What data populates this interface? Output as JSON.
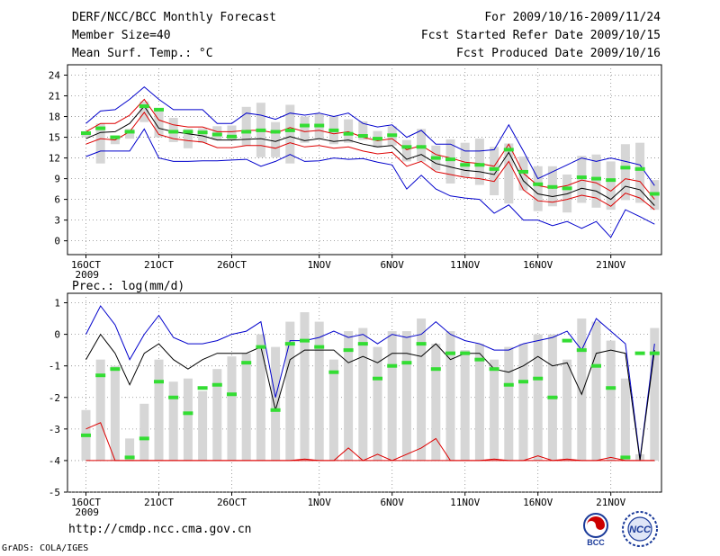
{
  "header": {
    "line1": "DERF/NCC/BCC Monthly Forecast",
    "line2": "Member Size=40",
    "line3": "Mean Surf. Temp.: °C",
    "right1": "For 2009/10/16-2009/11/24",
    "right2": "Fcst Started Refer Date 2009/10/15",
    "right3": "Fcst Produced Date 2009/10/16"
  },
  "footer": {
    "url": "http://cmdp.ncc.cma.gov.cn",
    "grads": "GrADS: COLA/IGES",
    "logo1_text": "BCC",
    "logo2_text": "NCC"
  },
  "colors": {
    "blue": "#0000cc",
    "red": "#dd0000",
    "black": "#000000",
    "green": "#33dd33",
    "bar": "#d6d6d6"
  },
  "chart_data": [
    {
      "type": "line",
      "title": "Mean Surf. Temp.: °C",
      "xlabel": "",
      "ylabel": "",
      "ylim": [
        -2,
        25.5
      ],
      "yticks": [
        0,
        3,
        6,
        9,
        12,
        15,
        18,
        21,
        24
      ],
      "x_tick_labels": [
        {
          "day": 1,
          "label": "16OCT",
          "sub": "2009"
        },
        {
          "day": 6,
          "label": "21OCT"
        },
        {
          "day": 11,
          "label": "26OCT"
        },
        {
          "day": 17,
          "label": "1NOV"
        },
        {
          "day": 22,
          "label": "6NOV"
        },
        {
          "day": 27,
          "label": "11NOV"
        },
        {
          "day": 32,
          "label": "16NOV"
        },
        {
          "day": 37,
          "label": "21NOV"
        }
      ],
      "days": [
        1,
        2,
        3,
        4,
        5,
        6,
        7,
        8,
        9,
        10,
        11,
        12,
        13,
        14,
        15,
        16,
        17,
        18,
        19,
        20,
        21,
        22,
        23,
        24,
        25,
        26,
        27,
        28,
        29,
        30,
        31,
        32,
        33,
        34,
        35,
        36,
        37,
        38,
        39,
        40
      ],
      "series": [
        {
          "name": "ensemble max",
          "color": "blue",
          "values": [
            17,
            18.8,
            19,
            20.5,
            22.3,
            20.5,
            19,
            19,
            19,
            17,
            17,
            18.5,
            18.2,
            17.6,
            18.5,
            18.2,
            18.5,
            18,
            18.5,
            17,
            16.5,
            16.8,
            15,
            16,
            14,
            14,
            13,
            13,
            13.2,
            16.8,
            13,
            9,
            10,
            11,
            12,
            11.5,
            12,
            11.5,
            11,
            8
          ]
        },
        {
          "name": "upper spread",
          "color": "red",
          "values": [
            15.8,
            17,
            17,
            18.2,
            20.5,
            17.5,
            16.8,
            16.5,
            16.5,
            15.8,
            15.8,
            16,
            16,
            15.6,
            16.4,
            15.8,
            16,
            15.5,
            15.8,
            15,
            14.5,
            14.8,
            13.2,
            13.8,
            12.5,
            12,
            11.4,
            11.2,
            10.8,
            14,
            9.8,
            8,
            7.6,
            8,
            8.8,
            8.4,
            7.2,
            9,
            8.6,
            6
          ]
        },
        {
          "name": "ensemble mean",
          "color": "black",
          "values": [
            14.8,
            15.7,
            15.8,
            17,
            19.5,
            16.3,
            15.8,
            15.5,
            15.2,
            14.6,
            14.6,
            14.7,
            14.8,
            14.4,
            15.1,
            14.5,
            14.8,
            14.4,
            14.6,
            14,
            13.6,
            13.8,
            11.8,
            12.5,
            11.2,
            10.7,
            10.2,
            10,
            9.6,
            12.8,
            8.7,
            6.8,
            6.4,
            6.8,
            7.6,
            7.2,
            6,
            7.9,
            7.4,
            5.1
          ]
        },
        {
          "name": "lower spread",
          "color": "red",
          "values": [
            14,
            14.8,
            14.6,
            15.8,
            18.6,
            15.4,
            14.8,
            14.5,
            14.3,
            13.5,
            13.5,
            13.8,
            13.8,
            13.4,
            14.2,
            13.6,
            13.8,
            13.4,
            13.6,
            13,
            12.6,
            12.8,
            10.8,
            11.5,
            10,
            9.6,
            9.2,
            9,
            8.6,
            11.5,
            7.4,
            5.8,
            5.6,
            6,
            6.6,
            6.2,
            5,
            6.9,
            6.2,
            4.5
          ]
        },
        {
          "name": "ensemble min",
          "color": "blue",
          "values": [
            12.2,
            13,
            13,
            13,
            16.2,
            12,
            11.5,
            11.5,
            11.6,
            11.6,
            11.7,
            11.8,
            10.8,
            11.5,
            12.5,
            11.5,
            11.6,
            12,
            11.8,
            11.9,
            11.4,
            11,
            7.5,
            9.5,
            7.5,
            6.5,
            6.2,
            6,
            4,
            5.2,
            3,
            3,
            2.2,
            2.8,
            1.8,
            2.8,
            0.5,
            4.5,
            3.5,
            2.4
          ]
        }
      ],
      "bars": {
        "name": "member spread box",
        "low": [
          15,
          11.2,
          14,
          14.8,
          17.2,
          15,
          14.3,
          13.4,
          14.2,
          14.6,
          14.6,
          13.8,
          12.1,
          12.1,
          11.2,
          14.2,
          14.8,
          14,
          14.2,
          14.6,
          13.5,
          13.8,
          11.5,
          11.5,
          10.2,
          8.3,
          9.2,
          8.1,
          6.6,
          5.4,
          7.3,
          4.3,
          5,
          4.1,
          5.5,
          4.8,
          4.5,
          5.9,
          5.5,
          4.5
        ],
        "high": [
          15.8,
          17,
          15.2,
          16.2,
          20.2,
          19,
          17.8,
          16.2,
          16.3,
          16.6,
          16.7,
          19.4,
          20,
          17.2,
          19.7,
          18,
          18.4,
          18.1,
          17.6,
          17.3,
          15.9,
          16.6,
          14.6,
          16.2,
          13.8,
          14.7,
          14.2,
          14.8,
          13.6,
          14.1,
          12.2,
          10.8,
          10.8,
          9.6,
          12.3,
          12.5,
          11.5,
          14,
          14.2,
          8.8
        ]
      },
      "markers": {
        "name": "observed",
        "color": "green",
        "values": [
          15.6,
          16.3,
          15,
          15.8,
          19.5,
          19,
          15.8,
          15.8,
          15.7,
          15.4,
          15.1,
          15.8,
          16,
          15.8,
          16,
          16.7,
          16.7,
          16,
          15.5,
          15.2,
          14.8,
          15.3,
          13.6,
          13.6,
          12,
          11.8,
          11,
          11,
          10.4,
          13.2,
          10,
          8.2,
          7.8,
          7.6,
          9.2,
          9,
          8.8,
          10.6,
          10.4,
          6.8
        ]
      }
    },
    {
      "type": "line",
      "title": "Prec.: log(mm/d)",
      "xlabel": "",
      "ylabel": "",
      "ylim": [
        -5,
        1.3
      ],
      "yticks": [
        -5,
        -4,
        -3,
        -2,
        -1,
        0,
        1
      ],
      "x_tick_labels": [
        {
          "day": 1,
          "label": "16OCT",
          "sub": "2009"
        },
        {
          "day": 6,
          "label": "21OCT"
        },
        {
          "day": 11,
          "label": "26OCT"
        },
        {
          "day": 17,
          "label": "1NOV"
        },
        {
          "day": 22,
          "label": "6NOV"
        },
        {
          "day": 27,
          "label": "11NOV"
        },
        {
          "day": 32,
          "label": "16NOV"
        },
        {
          "day": 37,
          "label": "21NOV"
        }
      ],
      "days": [
        1,
        2,
        3,
        4,
        5,
        6,
        7,
        8,
        9,
        10,
        11,
        12,
        13,
        14,
        15,
        16,
        17,
        18,
        19,
        20,
        21,
        22,
        23,
        24,
        25,
        26,
        27,
        28,
        29,
        30,
        31,
        32,
        33,
        34,
        35,
        36,
        37,
        38,
        39,
        40
      ],
      "series": [
        {
          "name": "ensemble max",
          "color": "blue",
          "values": [
            0,
            0.9,
            0.3,
            -0.8,
            0,
            0.6,
            -0.1,
            -0.3,
            -0.3,
            -0.2,
            0,
            0.1,
            0.4,
            -2,
            -0.2,
            -0.2,
            -0.1,
            0.1,
            -0.1,
            0,
            -0.3,
            0,
            -0.1,
            0,
            0.4,
            0,
            -0.2,
            -0.3,
            -0.5,
            -0.5,
            -0.3,
            -0.2,
            -0.1,
            0.1,
            -0.5,
            0.5,
            0.1,
            -0.3,
            -3.95,
            -0.3
          ]
        },
        {
          "name": "upper spread",
          "color": "red",
          "values": [
            -3,
            -2.8,
            -4,
            -4,
            -4,
            -4,
            -4,
            -4,
            -4,
            -4,
            -4,
            -4,
            -4,
            -4,
            -4,
            -3.95,
            -4,
            -4,
            -3.6,
            -4,
            -3.8,
            -4,
            -3.8,
            -3.6,
            -3.3,
            -4,
            -4,
            -4,
            -3.95,
            -4,
            -4,
            -3.85,
            -4,
            -3.95,
            -4,
            -4,
            -3.9,
            -4,
            -4,
            -4
          ]
        },
        {
          "name": "ensemble mean",
          "color": "black",
          "values": [
            -0.8,
            0,
            -0.6,
            -1.6,
            -0.6,
            -0.3,
            -0.8,
            -1.1,
            -0.8,
            -0.6,
            -0.6,
            -0.6,
            -0.4,
            -2.4,
            -0.8,
            -0.5,
            -0.5,
            -0.5,
            -0.9,
            -0.7,
            -0.9,
            -0.6,
            -0.6,
            -0.7,
            -0.3,
            -0.8,
            -0.6,
            -0.6,
            -1.1,
            -1.2,
            -1,
            -0.7,
            -1,
            -0.9,
            -1.9,
            -0.6,
            -0.5,
            -0.6,
            -4,
            -0.5
          ]
        },
        {
          "name": "lower spread",
          "color": "red",
          "values": [
            -4,
            -4,
            -4,
            -4,
            -4,
            -4,
            -4,
            -4,
            -4,
            -4,
            -4,
            -4,
            -4,
            -4,
            -4,
            -4,
            -4,
            -4,
            -4,
            -4,
            -4,
            -4,
            -4,
            -4,
            -4,
            -4,
            -4,
            -4,
            -4,
            -4,
            -4,
            -4,
            -4,
            -4,
            -4,
            -4,
            -4,
            -4,
            -4,
            -4
          ]
        }
      ],
      "bars": {
        "name": "member spread box",
        "low": [
          -4,
          -4,
          -4,
          -4,
          -4,
          -4,
          -4,
          -4,
          -4,
          -4,
          -4,
          -4,
          -4,
          -4,
          -4,
          -4,
          -4,
          -4,
          -4,
          -4,
          -4,
          -4,
          -4,
          -4,
          -4,
          -4,
          -4,
          -4,
          -4,
          -4,
          -4,
          -4,
          -4,
          -4,
          -4,
          -4,
          -4,
          -4,
          -4,
          -4
        ],
        "high": [
          -2.4,
          -0.8,
          -1.0,
          -3.3,
          -2.2,
          -0.8,
          -1.5,
          -1.4,
          -1.8,
          -1.1,
          -0.7,
          -0.6,
          0.0,
          -0.4,
          0.4,
          0.7,
          0.4,
          -0.8,
          0.1,
          0.2,
          -0.4,
          0.1,
          0.1,
          0.5,
          -0.3,
          0.1,
          -0.5,
          -0.3,
          -0.8,
          -0.4,
          -0.3,
          0.0,
          0.0,
          -0.8,
          0.5,
          0.4,
          -0.2,
          -1.4,
          -3.8,
          0.2
        ]
      },
      "markers": {
        "name": "observed",
        "color": "green",
        "values": [
          -3.2,
          -1.3,
          -1.1,
          -3.9,
          -3.3,
          -1.5,
          -2.0,
          -2.5,
          -1.7,
          -1.6,
          -1.9,
          -0.9,
          -0.4,
          -2.4,
          -0.3,
          -0.2,
          -0.4,
          -1.2,
          -0.5,
          -0.3,
          -1.4,
          -1.0,
          -0.9,
          -0.3,
          -1.1,
          -0.6,
          -0.6,
          -0.8,
          -1.1,
          -1.6,
          -1.5,
          -1.4,
          -2.0,
          -0.2,
          -0.5,
          -1.0,
          -1.7,
          -3.9,
          -0.6,
          -0.6
        ]
      }
    }
  ]
}
